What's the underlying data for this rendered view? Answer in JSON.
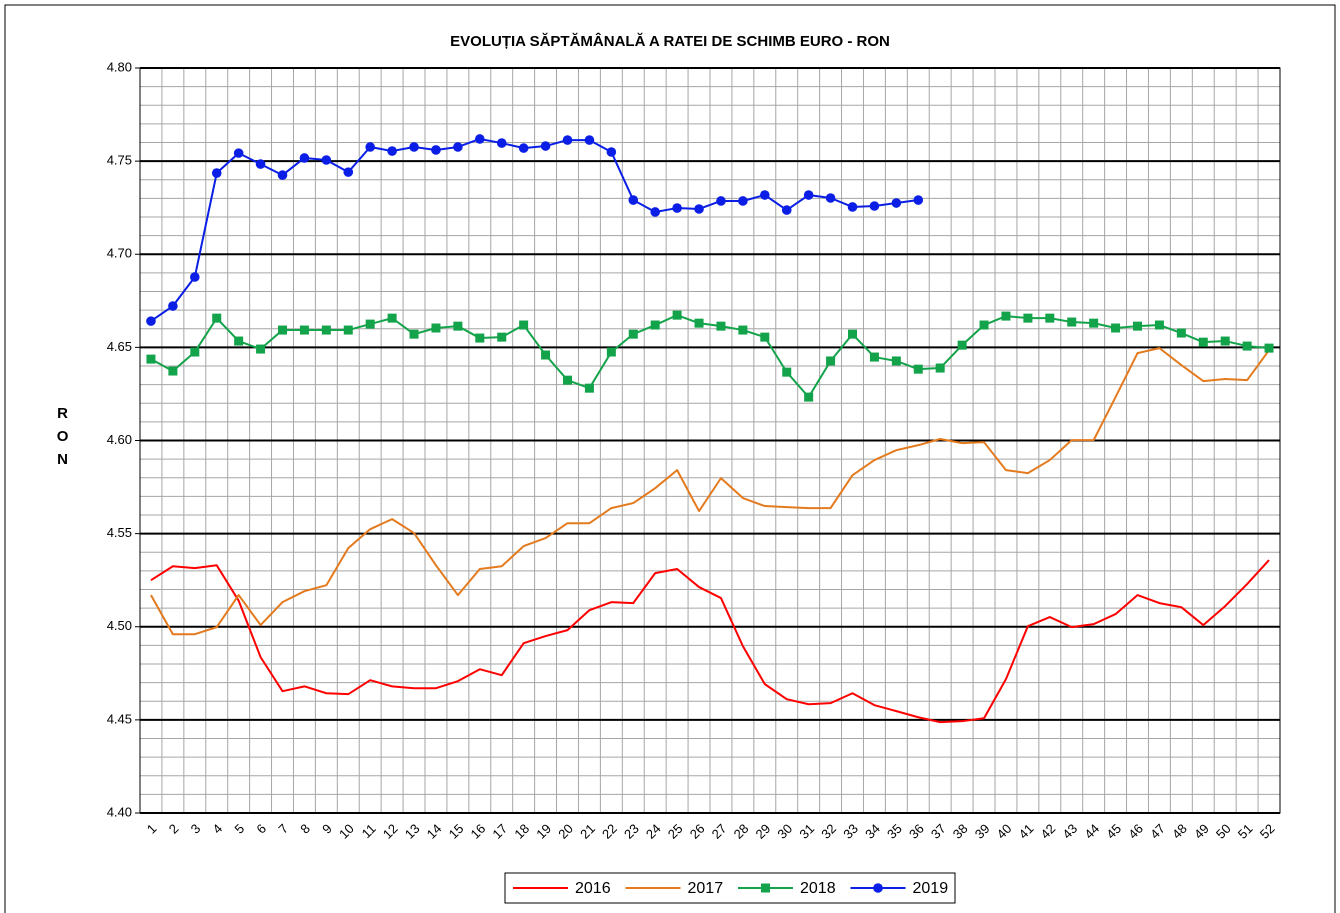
{
  "chart_data": {
    "type": "line",
    "title": "EVOLUȚIA SĂPTĂMÂNALĂ A RATEI DE SCHIMB EURO - RON",
    "y_label": "RON",
    "categories": [
      "1",
      "2",
      "3",
      "4",
      "5",
      "6",
      "7",
      "8",
      "9",
      "10",
      "11",
      "12",
      "13",
      "14",
      "15",
      "16",
      "17",
      "18",
      "19",
      "20",
      "21",
      "22",
      "23",
      "24",
      "25",
      "26",
      "27",
      "28",
      "29",
      "30",
      "31",
      "32",
      "33",
      "34",
      "35",
      "36",
      "37",
      "38",
      "39",
      "40",
      "41",
      "42",
      "43",
      "44",
      "45",
      "46",
      "47",
      "48",
      "49",
      "50",
      "51",
      "52"
    ],
    "ylim": [
      4.4,
      4.8
    ],
    "yticks": [
      {
        "value": 4.4,
        "label": "4.40"
      },
      {
        "value": 4.45,
        "label": "4.45"
      },
      {
        "value": 4.5,
        "label": "4.50"
      },
      {
        "value": 4.55,
        "label": "4.55"
      },
      {
        "value": 4.6,
        "label": "4.60"
      },
      {
        "value": 4.65,
        "label": "4.65"
      },
      {
        "value": 4.7,
        "label": "4.70"
      },
      {
        "value": 4.75,
        "label": "4.75"
      },
      {
        "value": 4.8,
        "label": "4.80"
      }
    ],
    "grid": true,
    "legend": "bottom",
    "series": [
      {
        "name": "2016",
        "color": "#ff0000",
        "marker": "none",
        "values": [
          4.525,
          4.5325,
          4.5315,
          4.533,
          4.514,
          4.4837,
          4.4654,
          4.468,
          4.4643,
          4.4638,
          4.4713,
          4.468,
          4.467,
          4.467,
          4.4708,
          4.4772,
          4.474,
          4.4912,
          4.495,
          4.4982,
          4.5089,
          4.5132,
          4.5127,
          4.5288,
          4.531,
          4.5213,
          4.5154,
          4.4896,
          4.4692,
          4.4611,
          4.4584,
          4.459,
          4.4643,
          4.4579,
          4.4547,
          4.4514,
          4.4488,
          4.4493,
          4.4509,
          4.4719,
          4.5003,
          4.5052,
          4.4998,
          4.5014,
          4.5068,
          4.517,
          4.5127,
          4.5105,
          4.5009,
          4.5111,
          4.5229,
          4.5358
        ]
      },
      {
        "name": "2017",
        "color": "#e47a1e",
        "marker": "none",
        "values": [
          4.517,
          4.496,
          4.496,
          4.4998,
          4.517,
          4.5009,
          4.5132,
          4.5191,
          4.5223,
          4.5422,
          4.5524,
          4.5578,
          4.5503,
          4.533,
          4.517,
          4.531,
          4.5325,
          4.5433,
          4.5476,
          4.5556,
          4.5556,
          4.5637,
          4.5664,
          4.5744,
          4.5841,
          4.5621,
          4.5798,
          4.5691,
          4.5648,
          4.5642,
          4.5637,
          4.5637,
          4.5814,
          4.5895,
          4.5948,
          4.5975,
          4.6008,
          4.5986,
          4.5991,
          4.5841,
          4.5825,
          4.5895,
          4.6002,
          4.6002,
          4.6233,
          4.6469,
          4.6496,
          4.6405,
          4.6319,
          4.633,
          4.6324,
          4.6485
        ]
      },
      {
        "name": "2018",
        "color": "#13a34a",
        "marker": "square",
        "values": [
          4.6437,
          4.6373,
          4.6475,
          4.6657,
          4.6534,
          4.6491,
          4.6593,
          4.6593,
          4.6593,
          4.6593,
          4.6625,
          4.6657,
          4.6571,
          4.6604,
          4.6614,
          4.655,
          4.6555,
          4.662,
          4.6459,
          4.6324,
          4.6281,
          4.6475,
          4.6571,
          4.662,
          4.6673,
          4.663,
          4.6614,
          4.6593,
          4.6555,
          4.6367,
          4.6233,
          4.6427,
          4.6571,
          4.6448,
          4.6427,
          4.6383,
          4.6389,
          4.6512,
          4.662,
          4.6668,
          4.6657,
          4.6657,
          4.6636,
          4.663,
          4.6604,
          4.6614,
          4.662,
          4.6577,
          4.6528,
          4.6534,
          4.6507,
          4.6496
        ]
      },
      {
        "name": "2019",
        "color": "#0a1ee6",
        "marker": "circle",
        "values": [
          4.6641,
          4.6722,
          4.6878,
          4.7436,
          4.7543,
          4.7484,
          4.7425,
          4.7517,
          4.7506,
          4.7441,
          4.7576,
          4.7554,
          4.7576,
          4.756,
          4.7576,
          4.7619,
          4.7597,
          4.757,
          4.7581,
          4.7613,
          4.7613,
          4.7549,
          4.7291,
          4.7227,
          4.7248,
          4.7243,
          4.7286,
          4.7286,
          4.7318,
          4.7237,
          4.7318,
          4.7302,
          4.7254,
          4.7259,
          4.7275,
          4.7291,
          null,
          null,
          null,
          null,
          null,
          null,
          null,
          null,
          null,
          null,
          null,
          null,
          null,
          null,
          null,
          null
        ]
      }
    ]
  }
}
